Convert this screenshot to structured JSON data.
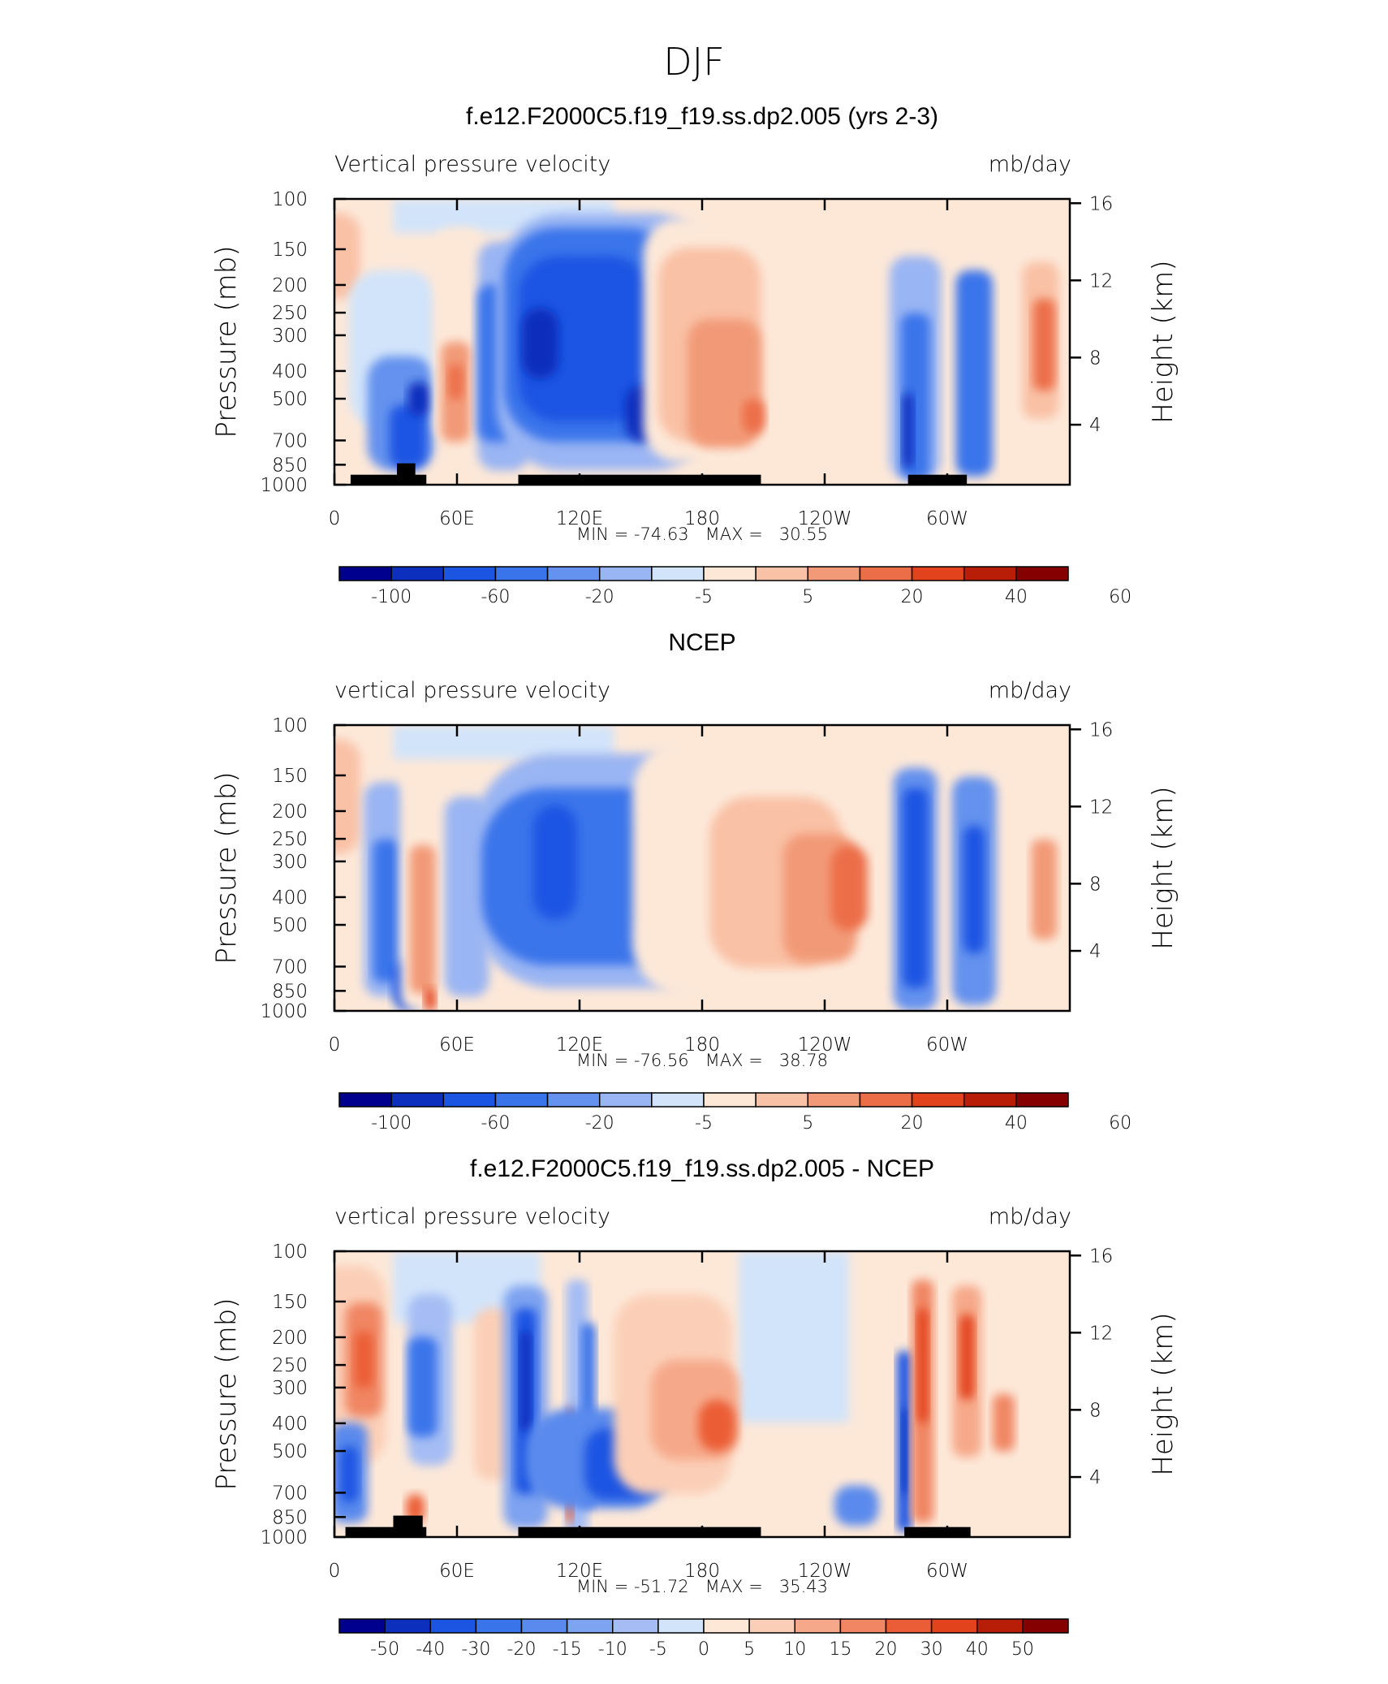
{
  "suptitle": "DJF",
  "colors": {
    "scale13": [
      "#00008f",
      "#0c2fbd",
      "#1d55e3",
      "#3a74eb",
      "#6592ee",
      "#9ab5f3",
      "#d2e4fa",
      "#fde8d8",
      "#f9c1a6",
      "#f29a77",
      "#ec6e48",
      "#e3431c",
      "#b81e07",
      "#850000"
    ],
    "scale15": [
      "#00008f",
      "#0c2fbd",
      "#1d55e3",
      "#3a74eb",
      "#5a8aed",
      "#7ea3f0",
      "#a5bdf4",
      "#d2e4fa",
      "#fde8d8",
      "#fbcfb7",
      "#f6a98a",
      "#f08663",
      "#eb5d36",
      "#e3431c",
      "#b81e07",
      "#850000"
    ],
    "land": "#000000"
  },
  "chart_data": [
    {
      "type": "heatmap",
      "title": "f.e12.F2000C5.f19_f19.ss.dp2.005 (yrs 2-3)",
      "left_label": "Vertical pressure velocity",
      "right_label": "mb/day",
      "ylabel": "Pressure (mb)",
      "y2label": "Height (km)",
      "x_ticks": [
        "0",
        "60E",
        "120E",
        "180",
        "120W",
        "60W"
      ],
      "y_ticks": [
        "100",
        "150",
        "200",
        "250",
        "300",
        "400",
        "500",
        "700",
        "850",
        "1000"
      ],
      "y2_ticks": [
        "16",
        "12",
        "8",
        "4"
      ],
      "min_max_text": "MIN = -74.63   MAX =   30.55",
      "colorbar_labels": [
        "-100",
        "-60",
        "-20",
        "-5",
        "5",
        "20",
        "40",
        "60"
      ],
      "levels": [
        -100,
        -80,
        -60,
        -40,
        -20,
        -10,
        -5,
        0,
        5,
        10,
        20,
        30,
        40,
        50,
        60
      ]
    },
    {
      "type": "heatmap",
      "title": "NCEP",
      "left_label": "vertical pressure velocity",
      "right_label": "mb/day",
      "ylabel": "Pressure (mb)",
      "y2label": "Height (km)",
      "x_ticks": [
        "0",
        "60E",
        "120E",
        "180",
        "120W",
        "60W"
      ],
      "y_ticks": [
        "100",
        "150",
        "200",
        "250",
        "300",
        "400",
        "500",
        "700",
        "850",
        "1000"
      ],
      "y2_ticks": [
        "16",
        "12",
        "8",
        "4"
      ],
      "min_max_text": "MIN = -76.56   MAX =   38.78",
      "colorbar_labels": [
        "-100",
        "-60",
        "-20",
        "-5",
        "5",
        "20",
        "40",
        "60"
      ],
      "levels": [
        -100,
        -80,
        -60,
        -40,
        -20,
        -10,
        -5,
        0,
        5,
        10,
        20,
        30,
        40,
        50,
        60
      ]
    },
    {
      "type": "heatmap",
      "title": "f.e12.F2000C5.f19_f19.ss.dp2.005 - NCEP",
      "left_label": "vertical pressure velocity",
      "right_label": "mb/day",
      "ylabel": "Pressure (mb)",
      "y2label": "Height (km)",
      "x_ticks": [
        "0",
        "60E",
        "120E",
        "180",
        "120W",
        "60W"
      ],
      "y_ticks": [
        "100",
        "150",
        "200",
        "250",
        "300",
        "400",
        "500",
        "700",
        "850",
        "1000"
      ],
      "y2_ticks": [
        "16",
        "12",
        "8",
        "4"
      ],
      "min_max_text": "MIN = -51.72   MAX =   35.43",
      "colorbar_labels": [
        "-50",
        "-40",
        "-30",
        "-20",
        "-15",
        "-10",
        "-5",
        "0",
        "5",
        "10",
        "15",
        "20",
        "30",
        "40",
        "50"
      ],
      "levels": [
        -60,
        -50,
        -40,
        -30,
        -20,
        -15,
        -10,
        -5,
        0,
        5,
        10,
        15,
        20,
        30,
        40,
        50,
        60
      ]
    }
  ]
}
